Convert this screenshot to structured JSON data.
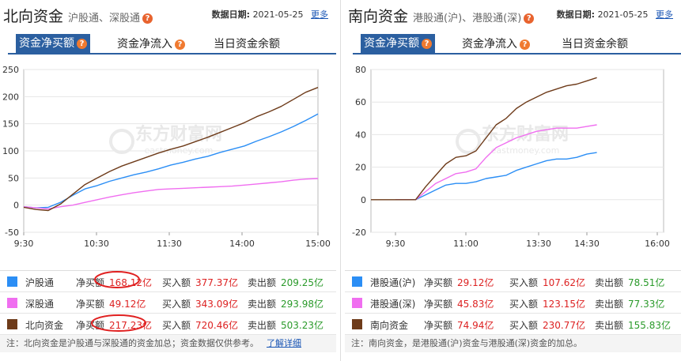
{
  "left": {
    "title": "北向资金",
    "subtitle": "沪股通、深股通",
    "date_label": "数据日期:",
    "date": "2021-05-25",
    "more": "更多",
    "tabs": [
      "资金净买额",
      "资金净流入",
      "当日资金余额"
    ],
    "legend": [
      {
        "name": "沪股通",
        "net_label": "净买额",
        "net": "168.12亿",
        "buy_label": "买入额",
        "buy": "377.37亿",
        "sell_label": "卖出额",
        "sell": "209.25亿",
        "color": "#2b8ef5"
      },
      {
        "name": "深股通",
        "net_label": "净买额",
        "net": "49.12亿",
        "buy_label": "买入额",
        "buy": "343.09亿",
        "sell_label": "卖出额",
        "sell": "293.98亿",
        "color": "#f06ef0"
      },
      {
        "name": "北向资金",
        "net_label": "净买额",
        "net": "217.23亿",
        "buy_label": "买入额",
        "buy": "720.46亿",
        "sell_label": "卖出额",
        "sell": "503.23亿",
        "color": "#6e3b1a"
      }
    ],
    "note": "注：北向资金是沪股通与深股通的资金加总；资金数据仅供参考。",
    "note_link": "了解详细"
  },
  "right": {
    "title": "南向资金",
    "subtitle": "港股通(沪)、港股通(深)",
    "date_label": "数据日期:",
    "date": "2021-05-25",
    "more": "更多",
    "tabs": [
      "资金净买额",
      "资金净流入",
      "当日资金余额"
    ],
    "legend": [
      {
        "name": "港股通(沪)",
        "net_label": "净买额",
        "net": "29.12亿",
        "buy_label": "买入额",
        "buy": "107.62亿",
        "sell_label": "卖出额",
        "sell": "78.51亿",
        "color": "#2b8ef5"
      },
      {
        "name": "港股通(深)",
        "net_label": "净买额",
        "net": "45.83亿",
        "buy_label": "买入额",
        "buy": "123.15亿",
        "sell_label": "卖出额",
        "sell": "77.33亿",
        "color": "#f06ef0"
      },
      {
        "name": "南向资金",
        "net_label": "净买额",
        "net": "74.94亿",
        "buy_label": "买入额",
        "buy": "230.77亿",
        "sell_label": "卖出额",
        "sell": "155.83亿",
        "color": "#6e3b1a"
      }
    ],
    "note": "注：南向资金，是港股通(沪)资金与港股通(深)资金的加总。"
  },
  "watermark": {
    "cn": "东方财富网",
    "en": "eastmoney.com"
  },
  "chart_data": [
    {
      "type": "line",
      "x_ticks": [
        "9:30",
        "10:30",
        "11:30",
        "14:00",
        "15:00"
      ],
      "y_ticks": [
        "250",
        "200",
        "150",
        "100",
        "50",
        "0",
        "-50"
      ],
      "ylim": [
        -50,
        250
      ],
      "x_range": [
        0,
        240
      ],
      "series": [
        {
          "name": "沪股通",
          "color": "#2b8ef5",
          "x": [
            0,
            10,
            20,
            30,
            40,
            50,
            60,
            70,
            80,
            90,
            100,
            110,
            120,
            130,
            140,
            150,
            160,
            170,
            180,
            190,
            200,
            210,
            220,
            230,
            240
          ],
          "y": [
            -3,
            -5,
            -4,
            5,
            18,
            30,
            36,
            44,
            50,
            56,
            61,
            67,
            74,
            79,
            85,
            90,
            97,
            103,
            109,
            118,
            126,
            135,
            145,
            156,
            168
          ]
        },
        {
          "name": "深股通",
          "color": "#f06ef0",
          "x": [
            0,
            10,
            20,
            30,
            40,
            50,
            60,
            70,
            80,
            90,
            100,
            110,
            120,
            130,
            140,
            150,
            160,
            170,
            180,
            190,
            200,
            210,
            220,
            230,
            240
          ],
          "y": [
            -3,
            -5,
            -7,
            -3,
            0,
            5,
            10,
            15,
            19,
            23,
            26,
            29,
            30,
            31,
            32,
            33,
            34,
            35,
            37,
            39,
            41,
            43,
            46,
            48,
            49
          ]
        },
        {
          "name": "北向资金",
          "color": "#6e3b1a",
          "x": [
            0,
            10,
            20,
            30,
            40,
            50,
            60,
            70,
            80,
            90,
            100,
            110,
            120,
            130,
            140,
            150,
            160,
            170,
            180,
            190,
            200,
            210,
            220,
            230,
            240
          ],
          "y": [
            -4,
            -8,
            -10,
            2,
            20,
            38,
            50,
            62,
            72,
            80,
            88,
            96,
            103,
            109,
            117,
            125,
            134,
            143,
            152,
            163,
            172,
            182,
            195,
            208,
            217
          ]
        }
      ]
    },
    {
      "type": "line",
      "x_ticks": [
        "9:30",
        "11:00",
        "13:30",
        "14:30",
        "16:00"
      ],
      "y_ticks": [
        "80",
        "60",
        "40",
        "20",
        "0",
        "-20"
      ],
      "ylim": [
        -20,
        80
      ],
      "x_range": [
        0,
        330
      ],
      "series": [
        {
          "name": "港股通(沪)",
          "color": "#2b8ef5",
          "x": [
            0,
            15,
            30,
            45,
            60,
            75,
            90,
            105,
            120,
            135,
            150,
            165,
            180,
            195,
            210,
            225,
            240,
            255,
            270,
            285,
            300
          ],
          "y": [
            0,
            0,
            0,
            3,
            6,
            9,
            10,
            10,
            11,
            13,
            14,
            15,
            18,
            20,
            22,
            24,
            25,
            25,
            26,
            28,
            29
          ]
        },
        {
          "name": "港股通(深)",
          "color": "#f06ef0",
          "x": [
            0,
            15,
            30,
            45,
            60,
            75,
            90,
            105,
            120,
            135,
            150,
            165,
            180,
            195,
            210,
            225,
            240,
            255,
            270,
            285,
            300
          ],
          "y": [
            0,
            0,
            0,
            5,
            10,
            13,
            16,
            17,
            19,
            26,
            32,
            35,
            38,
            40,
            42,
            43,
            44,
            44,
            44,
            45,
            46
          ]
        },
        {
          "name": "南向资金",
          "color": "#6e3b1a",
          "x": [
            0,
            15,
            30,
            45,
            60,
            75,
            90,
            105,
            120,
            135,
            150,
            165,
            180,
            195,
            210,
            225,
            240,
            255,
            270,
            285,
            300
          ],
          "y": [
            0,
            0,
            0,
            8,
            15,
            22,
            26,
            27,
            30,
            38,
            46,
            50,
            56,
            60,
            63,
            66,
            68,
            70,
            71,
            73,
            75
          ]
        }
      ]
    }
  ]
}
